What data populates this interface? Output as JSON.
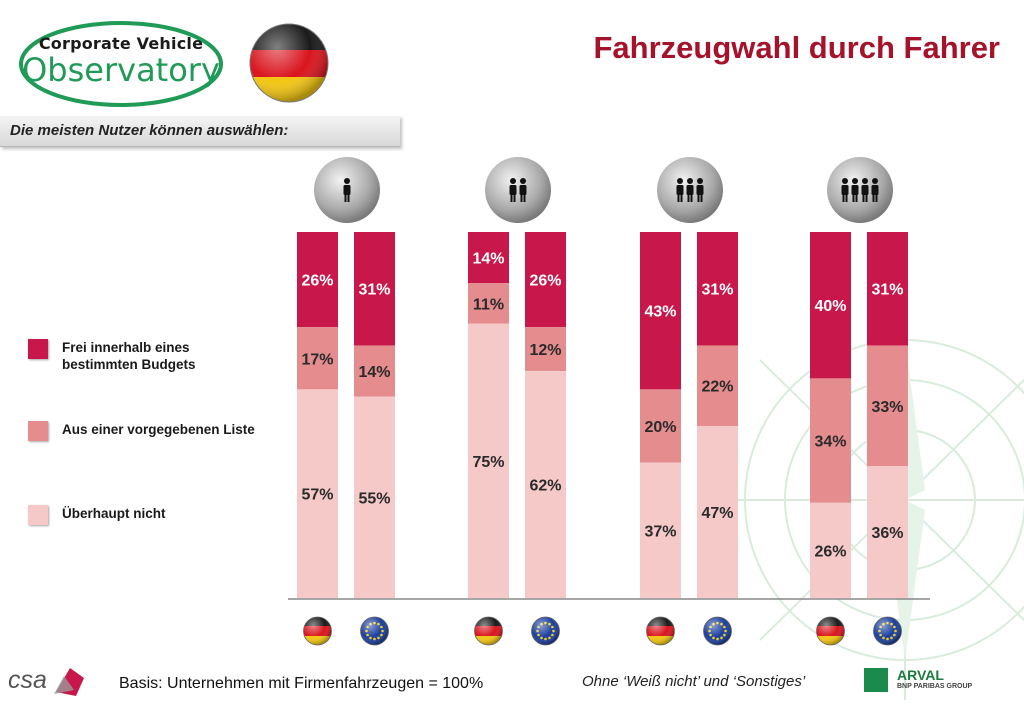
{
  "header": {
    "title": "Fahrzeugwahl durch Fahrer",
    "subtitle": "Die meisten Nutzer können auswählen:",
    "logo_line1": "Corporate Vehicle",
    "logo_line2": "Observatory"
  },
  "legend": [
    {
      "label_line1": "Frei innerhalb eines",
      "label_line2": "bestimmten Budgets",
      "color": "#c8174a"
    },
    {
      "label_line1": "Aus einer vorgegebenen Liste",
      "label_line2": "",
      "color": "#e48c8e"
    },
    {
      "label_line1": "Überhaupt nicht",
      "label_line2": "",
      "color": "#f6c9c9"
    }
  ],
  "footer": {
    "basis": "Basis: Unternehmen mit Firmenfahrzeugen = 100%",
    "note": "Ohne ‘Weiß nicht’ und ‘Sonstiges’",
    "csa_logo": "csa",
    "arval_name": "ARVAL",
    "arval_sub": "BNP PARIBAS GROUP"
  },
  "chart_data": {
    "type": "bar",
    "stacked": true,
    "normalized_percent": true,
    "group_icons": [
      "person-1-icon",
      "person-2-icon",
      "person-3-icon",
      "person-4-icon"
    ],
    "bar_icons": [
      "germany-flag-icon",
      "eu-flag-icon"
    ],
    "series": [
      {
        "key": "budget",
        "color": "#c8174a",
        "values": [
          [
            26,
            31
          ],
          [
            14,
            26
          ],
          [
            43,
            31
          ],
          [
            40,
            31
          ]
        ]
      },
      {
        "key": "liste",
        "color": "#e48c8e",
        "values": [
          [
            17,
            14
          ],
          [
            11,
            12
          ],
          [
            20,
            22
          ],
          [
            34,
            33
          ]
        ]
      },
      {
        "key": "nicht",
        "color": "#f6c9c9",
        "values": [
          [
            57,
            55
          ],
          [
            75,
            62
          ],
          [
            37,
            47
          ],
          [
            26,
            36
          ]
        ]
      }
    ],
    "ylim": [
      0,
      100
    ]
  }
}
